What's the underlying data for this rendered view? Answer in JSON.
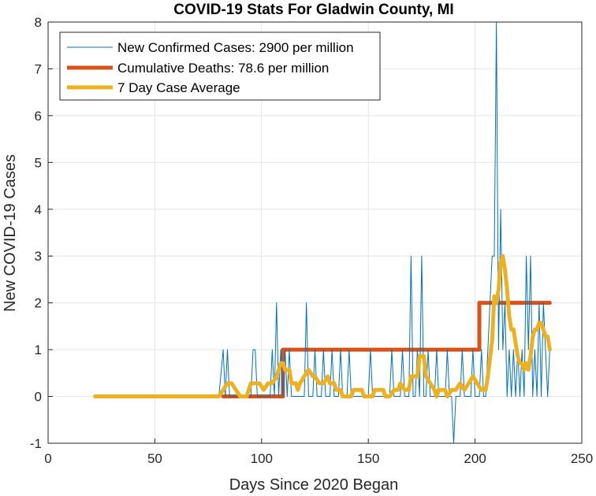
{
  "chart_data": {
    "type": "line",
    "title": "COVID-19 Stats For Gladwin County, MI",
    "xlabel": "Days Since 2020 Began",
    "ylabel": "New COVID-19 Cases",
    "xlim": [
      0,
      250
    ],
    "ylim": [
      -1,
      8
    ],
    "xticks": [
      0,
      50,
      100,
      150,
      200,
      250
    ],
    "yticks": [
      -1,
      0,
      1,
      2,
      3,
      4,
      5,
      6,
      7,
      8
    ],
    "grid": true,
    "legend_position": "top-left",
    "series": [
      {
        "name": "New Confirmed Cases: 2900 per million",
        "color": "#0072BD",
        "style": "thin",
        "points": [
          [
            80,
            0
          ],
          [
            82,
            1
          ],
          [
            83,
            0
          ],
          [
            84,
            1
          ],
          [
            85,
            0
          ],
          [
            95,
            0
          ],
          [
            96,
            1
          ],
          [
            97,
            1
          ],
          [
            98,
            0
          ],
          [
            104,
            0
          ],
          [
            105,
            1
          ],
          [
            106,
            0
          ],
          [
            107,
            2
          ],
          [
            108,
            0
          ],
          [
            109,
            1
          ],
          [
            110,
            0
          ],
          [
            111,
            1
          ],
          [
            112,
            0
          ],
          [
            113,
            1
          ],
          [
            114,
            0
          ],
          [
            120,
            0
          ],
          [
            121,
            2
          ],
          [
            122,
            0
          ],
          [
            124,
            0
          ],
          [
            125,
            1
          ],
          [
            126,
            0
          ],
          [
            128,
            0
          ],
          [
            129,
            1
          ],
          [
            130,
            0
          ],
          [
            132,
            0
          ],
          [
            133,
            1
          ],
          [
            134,
            0
          ],
          [
            136,
            0
          ],
          [
            137,
            1
          ],
          [
            138,
            0
          ],
          [
            140,
            0
          ],
          [
            141,
            1
          ],
          [
            142,
            0
          ],
          [
            150,
            0
          ],
          [
            151,
            1
          ],
          [
            152,
            0
          ],
          [
            160,
            0
          ],
          [
            161,
            1
          ],
          [
            162,
            0
          ],
          [
            165,
            0
          ],
          [
            166,
            1
          ],
          [
            167,
            0
          ],
          [
            169,
            0
          ],
          [
            170,
            3
          ],
          [
            171,
            0
          ],
          [
            172,
            0
          ],
          [
            173,
            1
          ],
          [
            174,
            0
          ],
          [
            175,
            3
          ],
          [
            176,
            0
          ],
          [
            177,
            0
          ],
          [
            178,
            1
          ],
          [
            179,
            0
          ],
          [
            181,
            0
          ],
          [
            182,
            1
          ],
          [
            183,
            0
          ],
          [
            186,
            0
          ],
          [
            187,
            1
          ],
          [
            188,
            0
          ],
          [
            189,
            0
          ],
          [
            190,
            -1
          ],
          [
            191,
            0
          ],
          [
            193,
            0
          ],
          [
            194,
            1
          ],
          [
            195,
            0
          ],
          [
            198,
            0
          ],
          [
            199,
            1
          ],
          [
            200,
            0
          ],
          [
            202,
            0
          ],
          [
            203,
            1
          ],
          [
            204,
            0
          ],
          [
            205,
            0
          ],
          [
            206,
            1
          ],
          [
            207,
            2
          ],
          [
            208,
            3
          ],
          [
            209,
            3
          ],
          [
            210,
            8
          ],
          [
            211,
            1
          ],
          [
            212,
            4
          ],
          [
            213,
            1
          ],
          [
            214,
            2
          ],
          [
            215,
            0
          ],
          [
            216,
            1
          ],
          [
            217,
            0
          ],
          [
            218,
            1
          ],
          [
            219,
            0
          ],
          [
            220,
            1
          ],
          [
            221,
            0
          ],
          [
            222,
            1
          ],
          [
            223,
            0
          ],
          [
            224,
            3
          ],
          [
            225,
            1
          ],
          [
            226,
            3
          ],
          [
            227,
            0
          ],
          [
            228,
            1
          ],
          [
            229,
            0
          ],
          [
            230,
            2
          ],
          [
            231,
            0
          ],
          [
            232,
            2
          ],
          [
            233,
            1
          ],
          [
            234,
            0
          ],
          [
            235,
            1
          ]
        ]
      },
      {
        "name": "Cumulative Deaths: 78.6 per million",
        "color": "#D95319",
        "style": "thick",
        "points": [
          [
            82,
            0
          ],
          [
            110,
            0
          ],
          [
            110,
            1
          ],
          [
            202,
            1
          ],
          [
            202,
            2
          ],
          [
            235,
            2
          ]
        ]
      },
      {
        "name": "7 Day Case Average",
        "color": "#EDB120",
        "style": "thick",
        "points": [
          [
            22,
            0
          ],
          [
            80,
            0
          ],
          [
            82,
            0.14
          ],
          [
            84,
            0.28
          ],
          [
            86,
            0.28
          ],
          [
            88,
            0.14
          ],
          [
            90,
            0
          ],
          [
            93,
            0
          ],
          [
            95,
            0.28
          ],
          [
            99,
            0.28
          ],
          [
            101,
            0.14
          ],
          [
            103,
            0.28
          ],
          [
            105,
            0.28
          ],
          [
            107,
            0.42
          ],
          [
            109,
            0.71
          ],
          [
            110,
            0.71
          ],
          [
            111,
            0.57
          ],
          [
            113,
            0.57
          ],
          [
            114,
            0.28
          ],
          [
            116,
            0.28
          ],
          [
            117,
            0.14
          ],
          [
            118,
            0.28
          ],
          [
            120,
            0.43
          ],
          [
            122,
            0.57
          ],
          [
            124,
            0.43
          ],
          [
            125,
            0.43
          ],
          [
            127,
            0.28
          ],
          [
            129,
            0.28
          ],
          [
            131,
            0.43
          ],
          [
            132,
            0.28
          ],
          [
            134,
            0.28
          ],
          [
            135,
            0.14
          ],
          [
            137,
            0.14
          ],
          [
            138,
            0
          ],
          [
            142,
            0
          ],
          [
            143,
            0.14
          ],
          [
            147,
            0.14
          ],
          [
            148,
            0
          ],
          [
            152,
            0
          ],
          [
            153,
            0.14
          ],
          [
            157,
            0.14
          ],
          [
            158,
            0
          ],
          [
            160,
            0
          ],
          [
            162,
            0.14
          ],
          [
            164,
            0.14
          ],
          [
            165,
            0.28
          ],
          [
            167,
            0.14
          ],
          [
            169,
            0.14
          ],
          [
            170,
            0.43
          ],
          [
            173,
            0.43
          ],
          [
            174,
            0.86
          ],
          [
            176,
            0.86
          ],
          [
            177,
            0.43
          ],
          [
            179,
            0.28
          ],
          [
            181,
            0.14
          ],
          [
            182,
            0
          ],
          [
            183,
            0.14
          ],
          [
            186,
            0.14
          ],
          [
            187,
            0
          ],
          [
            189,
            0.14
          ],
          [
            191,
            0.14
          ],
          [
            193,
            0.28
          ],
          [
            195,
            0.14
          ],
          [
            197,
            0.28
          ],
          [
            199,
            0.43
          ],
          [
            201,
            0.28
          ],
          [
            203,
            0.14
          ],
          [
            205,
            0.14
          ],
          [
            206,
            0.43
          ],
          [
            208,
            1.2
          ],
          [
            209,
            2.14
          ],
          [
            210,
            2.0
          ],
          [
            211,
            2.28
          ],
          [
            212,
            2.86
          ],
          [
            213,
            3.0
          ],
          [
            214,
            2.71
          ],
          [
            215,
            2.28
          ],
          [
            216,
            1.71
          ],
          [
            217,
            1.43
          ],
          [
            218,
            1.43
          ],
          [
            219,
            1.14
          ],
          [
            220,
            0.86
          ],
          [
            221,
            0.71
          ],
          [
            222,
            0.71
          ],
          [
            223,
            0.57
          ],
          [
            224,
            0.71
          ],
          [
            225,
            0.57
          ],
          [
            226,
            0.86
          ],
          [
            227,
            1.28
          ],
          [
            228,
            1.43
          ],
          [
            229,
            1.43
          ],
          [
            230,
            1.57
          ],
          [
            231,
            1.57
          ],
          [
            232,
            1.43
          ],
          [
            233,
            1.28
          ],
          [
            234,
            1.28
          ],
          [
            235,
            1.0
          ]
        ]
      }
    ]
  }
}
